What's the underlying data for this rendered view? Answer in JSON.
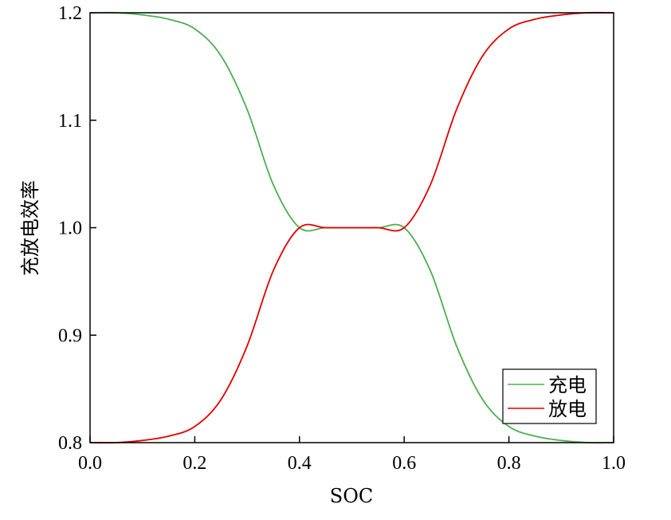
{
  "chart_data": {
    "type": "line",
    "xlabel": "SOC",
    "ylabel": "充放电效率",
    "xlim": [
      0.0,
      1.0
    ],
    "ylim": [
      0.8,
      1.2
    ],
    "x_ticks": [
      "0.0",
      "0.2",
      "0.4",
      "0.6",
      "0.8",
      "1.0"
    ],
    "y_ticks": [
      "0.8",
      "0.9",
      "1.0",
      "1.1",
      "1.2"
    ],
    "grid": false,
    "legend_position": "bottom-right",
    "x": [
      0.0,
      0.05,
      0.1,
      0.15,
      0.2,
      0.25,
      0.3,
      0.35,
      0.4,
      0.45,
      0.5,
      0.55,
      0.6,
      0.65,
      0.7,
      0.75,
      0.8,
      0.85,
      0.9,
      0.95,
      1.0
    ],
    "series": [
      {
        "name": "充电",
        "color": "#4caf50",
        "values": [
          1.2,
          1.2,
          1.198,
          1.194,
          1.185,
          1.16,
          1.11,
          1.04,
          1.0,
          1.0,
          1.0,
          1.0,
          1.0,
          0.96,
          0.89,
          0.84,
          0.815,
          0.806,
          0.802,
          0.8,
          0.8
        ]
      },
      {
        "name": "放电",
        "color": "#e00000",
        "values": [
          0.8,
          0.8,
          0.802,
          0.806,
          0.815,
          0.84,
          0.89,
          0.96,
          1.0,
          1.0,
          1.0,
          1.0,
          1.0,
          1.04,
          1.11,
          1.16,
          1.185,
          1.194,
          1.198,
          1.2,
          1.2
        ]
      }
    ]
  }
}
